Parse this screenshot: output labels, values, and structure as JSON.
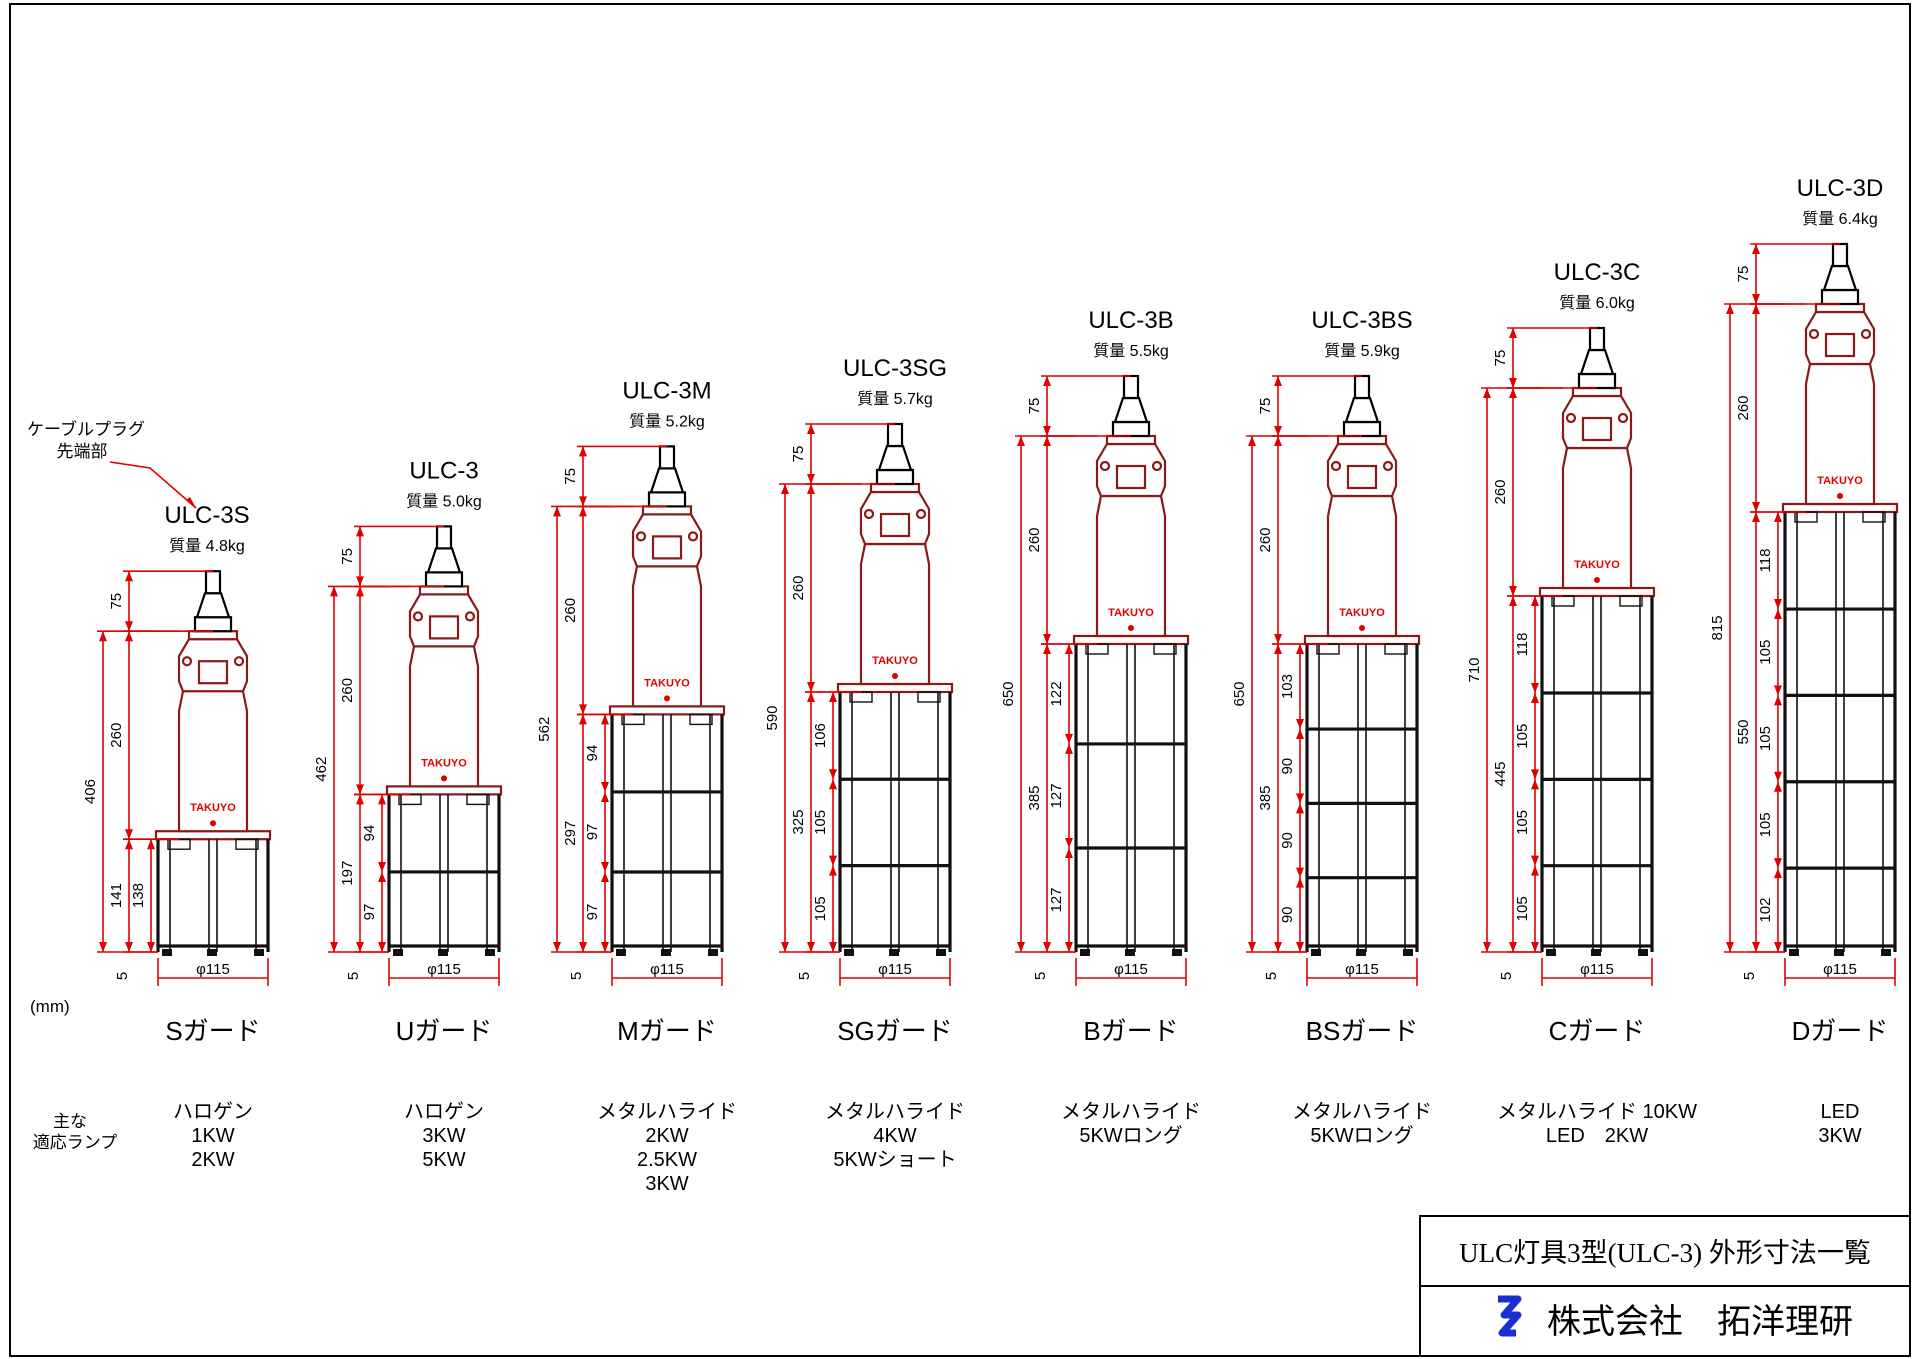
{
  "unit": "(mm)",
  "cable_plug_note": [
    "ケーブルプラグ",
    "先端部"
  ],
  "lamp_row_label": [
    "主な",
    "適応ランプ"
  ],
  "title_block": {
    "title": "ULC灯具3型(ULC-3) 外形寸法一覧",
    "company": "株式会社　拓洋理研"
  },
  "colors": {
    "dimension": "#e00000",
    "lamp_body": "#8a1a1a",
    "frame": "#000000",
    "logo": "#1a2fd0"
  },
  "brand_mark": "TAKUYO",
  "diameter_label": "φ115",
  "models": [
    {
      "name": "ULC-3S",
      "mass": "質量 4.8kg",
      "guard": "Sガード",
      "lamps": [
        "ハロゲン",
        "1KW",
        "2KW"
      ],
      "total": "406",
      "plug": "75",
      "body": "260",
      "cage_total": "141",
      "cage_secs": [
        "138"
      ],
      "base": "5",
      "tiers": 1
    },
    {
      "name": "ULC-3",
      "mass": "質量 5.0kg",
      "guard": "Uガード",
      "lamps": [
        "ハロゲン",
        "3KW",
        "5KW"
      ],
      "total": "462",
      "plug": "75",
      "body": "260",
      "cage_total": "197",
      "cage_secs": [
        "94",
        "97"
      ],
      "base": "5",
      "tiers": 2
    },
    {
      "name": "ULC-3M",
      "mass": "質量 5.2kg",
      "guard": "Mガード",
      "lamps": [
        "メタルハライド",
        "2KW",
        "2.5KW",
        "3KW"
      ],
      "total": "562",
      "plug": "75",
      "body": "260",
      "cage_total": "297",
      "cage_secs": [
        "94",
        "97",
        "97"
      ],
      "base": "5",
      "tiers": 3
    },
    {
      "name": "ULC-3SG",
      "mass": "質量 5.7kg",
      "guard": "SGガード",
      "lamps": [
        "メタルハライド",
        "4KW",
        "5KWショート"
      ],
      "total": "590",
      "plug": "75",
      "body": "260",
      "cage_total": "325",
      "cage_secs": [
        "106",
        "105",
        "105"
      ],
      "base": "5",
      "tiers": 3
    },
    {
      "name": "ULC-3B",
      "mass": "質量 5.5kg",
      "guard": "Bガード",
      "lamps": [
        "メタルハライド",
        "5KWロング"
      ],
      "total": "650",
      "plug": "75",
      "body": "260",
      "cage_total": "385",
      "cage_secs": [
        "122",
        "127",
        "127"
      ],
      "base": "5",
      "tiers": 3
    },
    {
      "name": "ULC-3BS",
      "mass": "質量 5.9kg",
      "guard": "BSガード",
      "lamps": [
        "メタルハライド",
        "5KWロング"
      ],
      "total": "650",
      "plug": "75",
      "body": "260",
      "cage_total": "385",
      "cage_secs": [
        "103",
        "90",
        "90",
        "90"
      ],
      "base": "5",
      "tiers": 4
    },
    {
      "name": "ULC-3C",
      "mass": "質量 6.0kg",
      "guard": "Cガード",
      "lamps": [
        "メタルハライド 10KW",
        "LED　2KW"
      ],
      "total": "710",
      "plug": "75",
      "body": "260",
      "cage_total": "445",
      "cage_secs": [
        "118",
        "105",
        "105",
        "105"
      ],
      "base": "5",
      "tiers": 4
    },
    {
      "name": "ULC-3D",
      "mass": "質量 6.4kg",
      "guard": "Dガード",
      "lamps": [
        "LED",
        "3KW"
      ],
      "total": "815",
      "plug": "75",
      "body": "260",
      "cage_total": "550",
      "cage_secs": [
        "118",
        "105",
        "105",
        "105",
        "102"
      ],
      "base": "5",
      "tiers": 5
    }
  ]
}
